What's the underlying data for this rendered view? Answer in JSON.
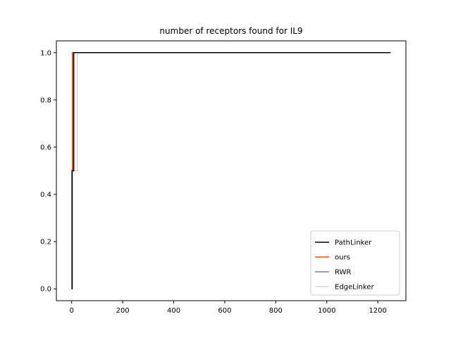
{
  "chart_data": {
    "type": "line",
    "title": "number of receptors found for IL9",
    "xlabel": "",
    "ylabel": "",
    "xlim": [
      -60,
      1310
    ],
    "ylim": [
      -0.05,
      1.05
    ],
    "xticks": [
      0,
      200,
      400,
      600,
      800,
      1000,
      1200
    ],
    "yticks": [
      0.0,
      0.2,
      0.4,
      0.6,
      0.8,
      1.0
    ],
    "xtick_labels": [
      "0",
      "200",
      "400",
      "600",
      "800",
      "1000",
      "1200"
    ],
    "ytick_labels": [
      "0.0",
      "0.2",
      "0.4",
      "0.6",
      "0.8",
      "1.0"
    ],
    "grid": false,
    "legend_position": "lower-right",
    "series": [
      {
        "name": "PathLinker",
        "color": "#000000",
        "x": [
          0,
          2,
          2,
          8,
          8,
          1250
        ],
        "y": [
          0.0,
          0.0,
          0.5,
          0.5,
          1.0,
          1.0
        ]
      },
      {
        "name": "ours",
        "color": "#ff4500",
        "x": [
          0,
          1,
          1,
          3,
          3,
          1250
        ],
        "y": [
          0.0,
          0.0,
          0.5,
          0.5,
          1.0,
          1.0
        ]
      },
      {
        "name": "RWR",
        "color": "#808080",
        "x": [
          0,
          1,
          1,
          5,
          5,
          1250
        ],
        "y": [
          0.0,
          0.0,
          0.5,
          0.5,
          1.0,
          1.0
        ]
      },
      {
        "name": "EdgeLinker",
        "color": "#d3d3d3",
        "x": [
          0,
          1,
          1,
          22,
          22,
          1250
        ],
        "y": [
          0.0,
          0.0,
          0.5,
          0.5,
          1.0,
          1.0
        ]
      }
    ]
  }
}
